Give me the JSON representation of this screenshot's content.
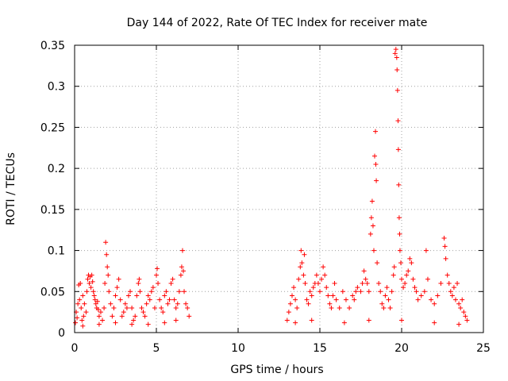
{
  "chart_data": {
    "type": "scatter",
    "title": "Day 144 of 2022, Rate Of TEC Index for receiver mate",
    "xlabel": "GPS time / hours",
    "ylabel": "ROTI / TECUs",
    "xlim": [
      0,
      25
    ],
    "ylim": [
      0,
      0.35
    ],
    "x_ticks": [
      0,
      5,
      10,
      15,
      20,
      25
    ],
    "x_tick_labels": [
      "0",
      "5",
      "10",
      "15",
      "20",
      "25"
    ],
    "y_ticks": [
      0,
      0.05,
      0.1,
      0.15,
      0.2,
      0.25,
      0.3,
      0.35
    ],
    "y_tick_labels": [
      "0",
      "0.05",
      "0.1",
      "0.15",
      "0.2",
      "0.25",
      "0.3",
      "0.35"
    ],
    "grid": true,
    "marker": "+",
    "color": "#ff0000",
    "series": [
      {
        "name": "ROTI",
        "points": [
          [
            0.05,
            0.012
          ],
          [
            0.1,
            0.025
          ],
          [
            0.15,
            0.018
          ],
          [
            0.2,
            0.035
          ],
          [
            0.25,
            0.058
          ],
          [
            0.3,
            0.04
          ],
          [
            0.35,
            0.06
          ],
          [
            0.4,
            0.03
          ],
          [
            0.45,
            0.015
          ],
          [
            0.5,
            0.045
          ],
          [
            0.55,
            0.02
          ],
          [
            0.6,
            0.035
          ],
          [
            0.7,
            0.025
          ],
          [
            0.75,
            0.05
          ],
          [
            0.8,
            0.065
          ],
          [
            0.85,
            0.07
          ],
          [
            0.9,
            0.06
          ],
          [
            0.95,
            0.068
          ],
          [
            1.0,
            0.055
          ],
          [
            1.05,
            0.07
          ],
          [
            1.1,
            0.062
          ],
          [
            1.15,
            0.05
          ],
          [
            1.2,
            0.045
          ],
          [
            1.25,
            0.04
          ],
          [
            1.3,
            0.035
          ],
          [
            1.35,
            0.03
          ],
          [
            1.4,
            0.038
          ],
          [
            1.45,
            0.028
          ],
          [
            1.5,
            0.02
          ],
          [
            1.6,
            0.025
          ],
          [
            1.7,
            0.015
          ],
          [
            1.8,
            0.03
          ],
          [
            1.85,
            0.06
          ],
          [
            1.9,
            0.11
          ],
          [
            1.95,
            0.095
          ],
          [
            2.0,
            0.08
          ],
          [
            2.05,
            0.07
          ],
          [
            2.1,
            0.05
          ],
          [
            2.2,
            0.035
          ],
          [
            2.3,
            0.02
          ],
          [
            2.4,
            0.03
          ],
          [
            2.5,
            0.045
          ],
          [
            2.6,
            0.055
          ],
          [
            2.7,
            0.065
          ],
          [
            2.8,
            0.04
          ],
          [
            2.9,
            0.02
          ],
          [
            3.0,
            0.025
          ],
          [
            3.1,
            0.035
          ],
          [
            3.2,
            0.03
          ],
          [
            3.3,
            0.045
          ],
          [
            3.4,
            0.05
          ],
          [
            3.5,
            0.03
          ],
          [
            3.6,
            0.015
          ],
          [
            3.7,
            0.02
          ],
          [
            3.8,
            0.045
          ],
          [
            3.9,
            0.06
          ],
          [
            3.95,
            0.065
          ],
          [
            4.0,
            0.05
          ],
          [
            4.1,
            0.03
          ],
          [
            4.2,
            0.025
          ],
          [
            4.3,
            0.02
          ],
          [
            4.4,
            0.035
          ],
          [
            4.5,
            0.045
          ],
          [
            4.6,
            0.04
          ],
          [
            4.7,
            0.05
          ],
          [
            4.8,
            0.055
          ],
          [
            4.9,
            0.03
          ],
          [
            5.0,
            0.07
          ],
          [
            5.05,
            0.078
          ],
          [
            5.1,
            0.06
          ],
          [
            5.2,
            0.04
          ],
          [
            5.3,
            0.03
          ],
          [
            5.4,
            0.025
          ],
          [
            5.5,
            0.045
          ],
          [
            5.6,
            0.05
          ],
          [
            5.7,
            0.035
          ],
          [
            5.8,
            0.04
          ],
          [
            5.9,
            0.06
          ],
          [
            6.0,
            0.065
          ],
          [
            6.1,
            0.04
          ],
          [
            6.2,
            0.03
          ],
          [
            6.3,
            0.035
          ],
          [
            6.4,
            0.05
          ],
          [
            6.5,
            0.07
          ],
          [
            6.55,
            0.08
          ],
          [
            6.6,
            0.1
          ],
          [
            6.65,
            0.075
          ],
          [
            6.7,
            0.05
          ],
          [
            6.8,
            0.035
          ],
          [
            6.9,
            0.03
          ],
          [
            7.0,
            0.02
          ],
          [
            6.2,
            0.015
          ],
          [
            5.5,
            0.012
          ],
          [
            4.5,
            0.01
          ],
          [
            3.5,
            0.01
          ],
          [
            2.5,
            0.012
          ],
          [
            1.5,
            0.01
          ],
          [
            0.5,
            0.008
          ],
          [
            13.0,
            0.015
          ],
          [
            13.1,
            0.025
          ],
          [
            13.2,
            0.035
          ],
          [
            13.3,
            0.045
          ],
          [
            13.4,
            0.055
          ],
          [
            13.5,
            0.04
          ],
          [
            13.6,
            0.03
          ],
          [
            13.7,
            0.065
          ],
          [
            13.8,
            0.08
          ],
          [
            13.85,
            0.1
          ],
          [
            13.9,
            0.085
          ],
          [
            14.0,
            0.07
          ],
          [
            14.05,
            0.095
          ],
          [
            14.1,
            0.06
          ],
          [
            14.2,
            0.04
          ],
          [
            14.3,
            0.035
          ],
          [
            14.4,
            0.05
          ],
          [
            14.5,
            0.045
          ],
          [
            14.6,
            0.055
          ],
          [
            14.7,
            0.06
          ],
          [
            14.8,
            0.07
          ],
          [
            14.9,
            0.06
          ],
          [
            15.0,
            0.05
          ],
          [
            15.1,
            0.065
          ],
          [
            15.2,
            0.08
          ],
          [
            15.3,
            0.07
          ],
          [
            15.4,
            0.055
          ],
          [
            15.5,
            0.045
          ],
          [
            15.6,
            0.035
          ],
          [
            15.7,
            0.03
          ],
          [
            15.8,
            0.045
          ],
          [
            15.9,
            0.06
          ],
          [
            16.0,
            0.04
          ],
          [
            16.2,
            0.03
          ],
          [
            16.4,
            0.05
          ],
          [
            16.6,
            0.04
          ],
          [
            16.8,
            0.03
          ],
          [
            17.0,
            0.045
          ],
          [
            17.1,
            0.04
          ],
          [
            17.2,
            0.05
          ],
          [
            17.3,
            0.055
          ],
          [
            17.5,
            0.05
          ],
          [
            17.6,
            0.06
          ],
          [
            17.7,
            0.075
          ],
          [
            17.8,
            0.065
          ],
          [
            17.9,
            0.06
          ],
          [
            18.0,
            0.05
          ],
          [
            18.1,
            0.12
          ],
          [
            18.15,
            0.14
          ],
          [
            18.2,
            0.16
          ],
          [
            18.25,
            0.13
          ],
          [
            18.3,
            0.1
          ],
          [
            18.35,
            0.215
          ],
          [
            18.4,
            0.245
          ],
          [
            18.42,
            0.205
          ],
          [
            18.45,
            0.185
          ],
          [
            18.5,
            0.085
          ],
          [
            18.6,
            0.06
          ],
          [
            18.7,
            0.05
          ],
          [
            18.8,
            0.035
          ],
          [
            18.9,
            0.03
          ],
          [
            19.0,
            0.045
          ],
          [
            19.1,
            0.055
          ],
          [
            19.2,
            0.04
          ],
          [
            19.3,
            0.03
          ],
          [
            19.4,
            0.05
          ],
          [
            19.5,
            0.07
          ],
          [
            19.55,
            0.08
          ],
          [
            19.6,
            0.34
          ],
          [
            19.65,
            0.345
          ],
          [
            19.7,
            0.335
          ],
          [
            19.72,
            0.32
          ],
          [
            19.75,
            0.295
          ],
          [
            19.78,
            0.258
          ],
          [
            19.8,
            0.223
          ],
          [
            19.82,
            0.18
          ],
          [
            19.85,
            0.14
          ],
          [
            19.88,
            0.12
          ],
          [
            19.9,
            0.1
          ],
          [
            19.95,
            0.085
          ],
          [
            20.0,
            0.065
          ],
          [
            20.1,
            0.055
          ],
          [
            20.2,
            0.06
          ],
          [
            20.3,
            0.07
          ],
          [
            20.4,
            0.075
          ],
          [
            20.5,
            0.09
          ],
          [
            20.6,
            0.085
          ],
          [
            20.7,
            0.065
          ],
          [
            20.8,
            0.055
          ],
          [
            20.9,
            0.05
          ],
          [
            21.0,
            0.04
          ],
          [
            21.2,
            0.045
          ],
          [
            21.4,
            0.05
          ],
          [
            21.5,
            0.1
          ],
          [
            21.6,
            0.065
          ],
          [
            21.8,
            0.04
          ],
          [
            22.0,
            0.035
          ],
          [
            22.2,
            0.045
          ],
          [
            22.4,
            0.06
          ],
          [
            22.6,
            0.115
          ],
          [
            22.65,
            0.105
          ],
          [
            22.7,
            0.09
          ],
          [
            22.8,
            0.07
          ],
          [
            22.9,
            0.06
          ],
          [
            23.0,
            0.05
          ],
          [
            23.1,
            0.045
          ],
          [
            23.2,
            0.055
          ],
          [
            23.3,
            0.04
          ],
          [
            23.4,
            0.06
          ],
          [
            23.5,
            0.035
          ],
          [
            23.6,
            0.03
          ],
          [
            23.7,
            0.04
          ],
          [
            23.8,
            0.025
          ],
          [
            23.9,
            0.02
          ],
          [
            24.0,
            0.015
          ],
          [
            13.5,
            0.012
          ],
          [
            14.5,
            0.015
          ],
          [
            16.5,
            0.012
          ],
          [
            18.0,
            0.015
          ],
          [
            20.0,
            0.015
          ],
          [
            22.0,
            0.012
          ],
          [
            23.5,
            0.01
          ]
        ]
      }
    ]
  }
}
